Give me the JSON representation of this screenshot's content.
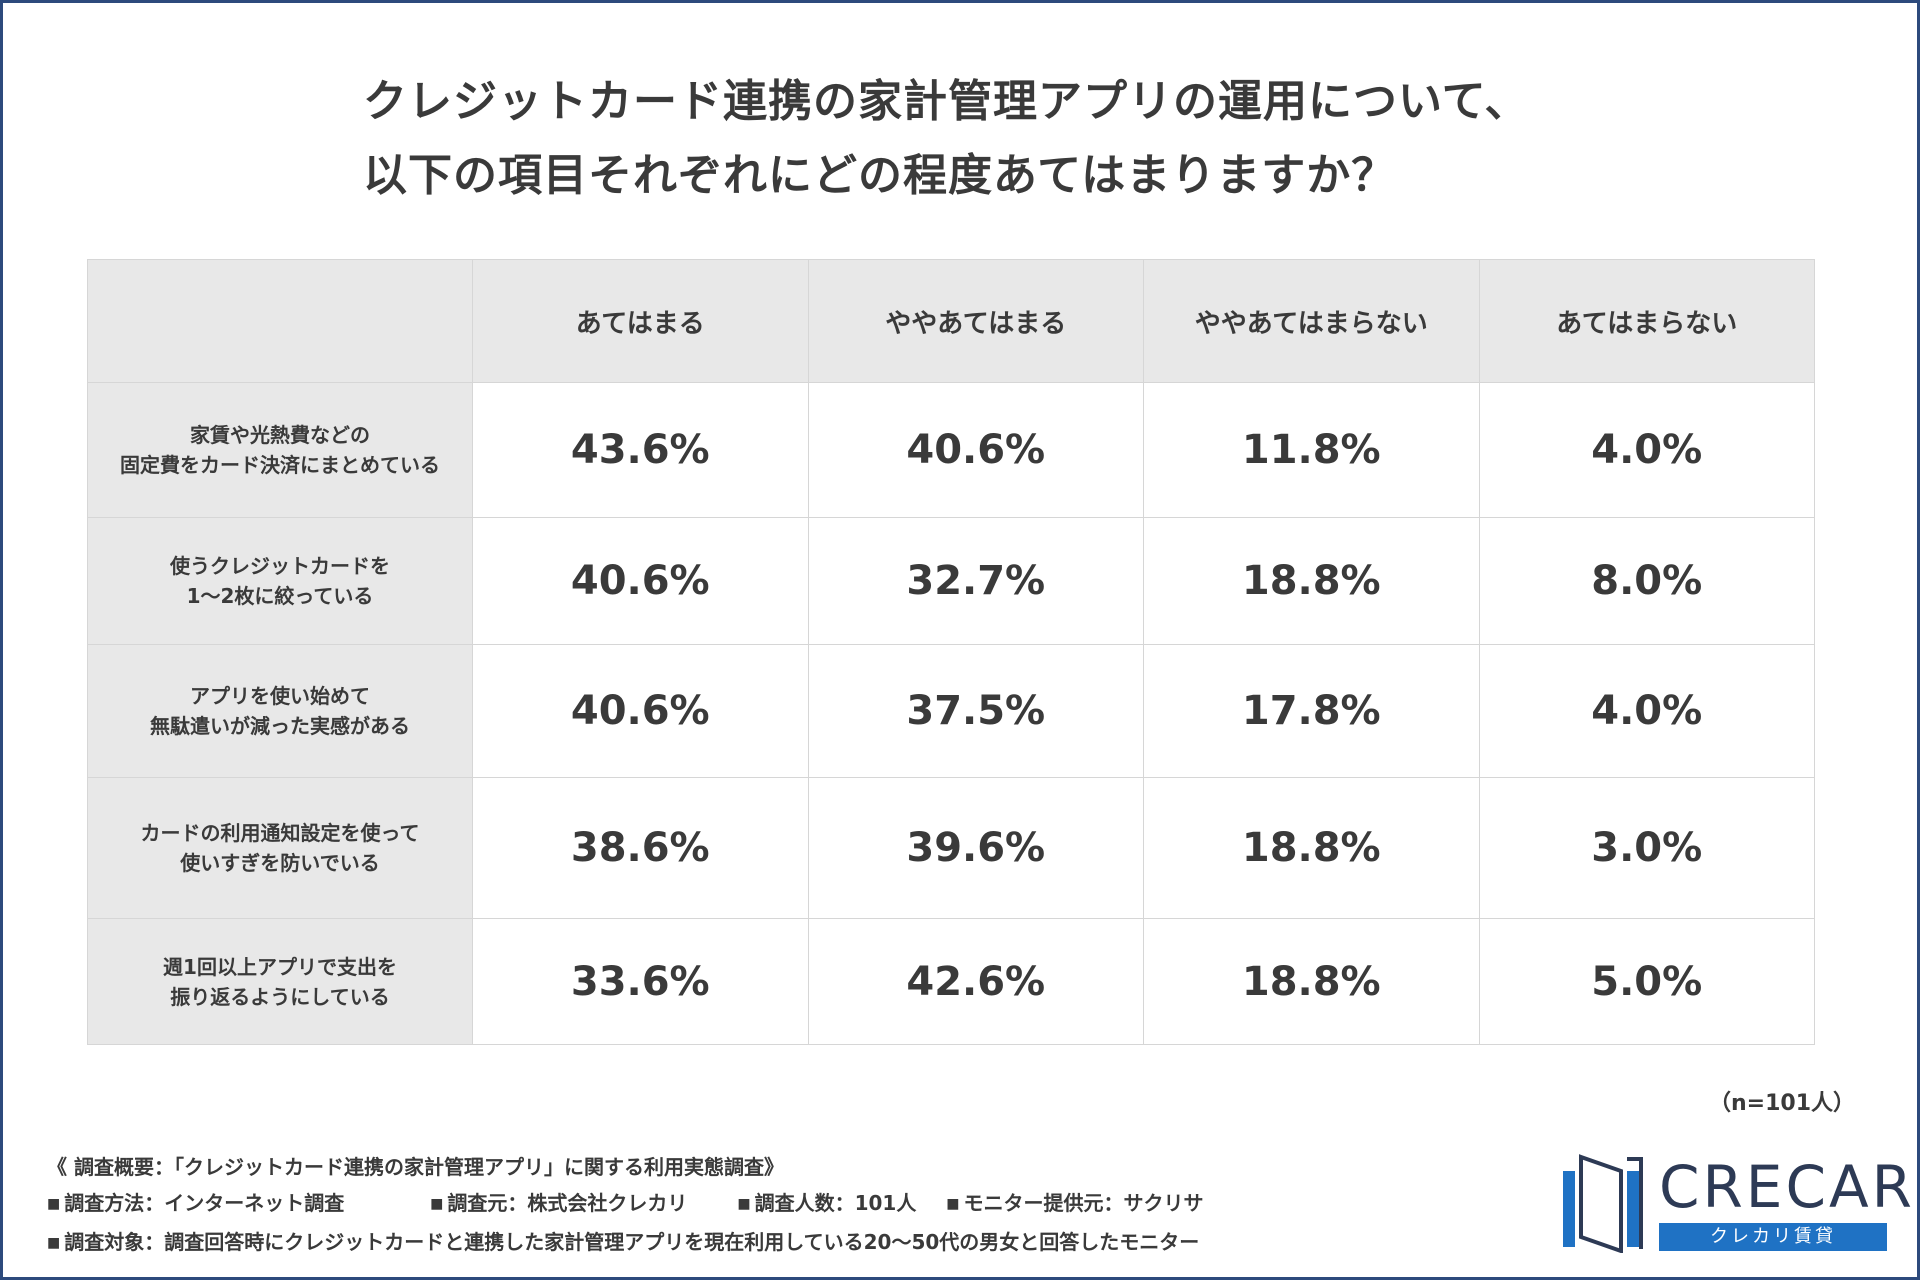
{
  "title": {
    "line1": "クレジットカード連携の家計管理アプリの運用について、",
    "line2": "以下の項目それぞれにどの程度あてはまりますか？"
  },
  "chart_data": {
    "type": "table",
    "columns": [
      "あてはまる",
      "ややあてはまる",
      "ややあてはまらない",
      "あてはまらない"
    ],
    "rows": [
      {
        "label": [
          "家賃や光熱費などの",
          "固定費をカード決済にまとめている"
        ],
        "values": [
          "43.6%",
          "40.6%",
          "11.8%",
          "4.0%"
        ]
      },
      {
        "label": [
          "使うクレジットカードを",
          "1～2枚に絞っている"
        ],
        "values": [
          "40.6%",
          "32.7%",
          "18.8%",
          "8.0%"
        ]
      },
      {
        "label": [
          "アプリを使い始めて",
          "無駄遣いが減った実感がある"
        ],
        "values": [
          "40.6%",
          "37.5%",
          "17.8%",
          "4.0%"
        ]
      },
      {
        "label": [
          "カードの利用通知設定を使って",
          "使いすぎを防いでいる"
        ],
        "values": [
          "38.6%",
          "39.6%",
          "18.8%",
          "3.0%"
        ]
      },
      {
        "label": [
          "週1回以上アプリで支出を",
          "振り返るようにしている"
        ],
        "values": [
          "33.6%",
          "42.6%",
          "18.8%",
          "5.0%"
        ]
      }
    ]
  },
  "sample_note": "（n=101人）",
  "footer": {
    "summary": "《 調査概要：「クレジットカード連携の家計管理アプリ」に関する利用実態調査》",
    "method": "調査方法：インターネット調査",
    "source": "調査元：株式会社クレカリ",
    "count": "調査人数：101人",
    "monitor": "モニター提供元：サクリサ",
    "target": "調査対象：調査回答時にクレジットカードと連携した家計管理アプリを現在利用している20～50代の男女と回答したモニター"
  },
  "logo": {
    "name": "CRECARI",
    "sub": "クレカリ賃貸"
  },
  "colors": {
    "frame": "#2d4a7c",
    "header_bg": "#e8e8e8",
    "text": "#3a3a3a",
    "logo_blue": "#1f72c4"
  }
}
